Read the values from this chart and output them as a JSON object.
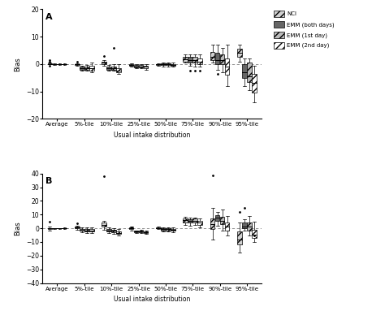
{
  "categories": [
    "Average",
    "5%-tile",
    "10%-tile",
    "25%-tile",
    "50%-tile",
    "75%-tile",
    "90%-tile",
    "95%-tile"
  ],
  "panel_A": {
    "NCI": {
      "whislo": [
        0.0,
        -0.5,
        -0.5,
        -0.8,
        -0.5,
        0.5,
        0.5,
        1.0
      ],
      "q1": [
        0.0,
        -0.3,
        0.0,
        -0.5,
        -0.2,
        1.0,
        1.5,
        2.5
      ],
      "med": [
        0.0,
        -0.1,
        0.5,
        -0.2,
        0.0,
        1.8,
        2.5,
        4.0
      ],
      "q3": [
        0.2,
        0.1,
        1.0,
        0.0,
        0.1,
        2.5,
        4.5,
        5.5
      ],
      "whishi": [
        0.5,
        0.3,
        1.5,
        0.2,
        0.3,
        3.5,
        7.0,
        7.0
      ]
    },
    "EMM_both": {
      "whislo": [
        -0.2,
        -2.5,
        -2.5,
        -1.5,
        -0.8,
        -0.5,
        -2.0,
        -8.0
      ],
      "q1": [
        0.0,
        -2.0,
        -2.0,
        -1.2,
        -0.3,
        0.5,
        0.0,
        -5.0
      ],
      "med": [
        0.0,
        -1.5,
        -1.5,
        -0.8,
        0.0,
        1.5,
        1.5,
        -3.0
      ],
      "q3": [
        0.1,
        -1.0,
        -1.0,
        -0.3,
        0.2,
        2.5,
        4.0,
        0.0
      ],
      "whishi": [
        0.2,
        -0.5,
        -0.3,
        0.0,
        0.5,
        3.5,
        7.0,
        2.0
      ]
    },
    "EMM_1st": {
      "whislo": [
        -0.2,
        -2.5,
        -2.5,
        -1.5,
        -0.8,
        -0.8,
        -3.0,
        -9.5
      ],
      "q1": [
        0.0,
        -2.0,
        -2.0,
        -1.2,
        -0.3,
        0.5,
        0.0,
        -6.5
      ],
      "med": [
        0.0,
        -1.5,
        -1.5,
        -0.8,
        0.0,
        1.5,
        1.5,
        -4.5
      ],
      "q3": [
        0.1,
        -1.0,
        -0.8,
        -0.3,
        0.2,
        2.5,
        3.5,
        0.5
      ],
      "whishi": [
        0.2,
        -0.3,
        -0.1,
        0.0,
        0.5,
        3.5,
        6.0,
        2.0
      ]
    },
    "EMM_2nd": {
      "whislo": [
        -0.3,
        -3.0,
        -3.5,
        -2.0,
        -1.0,
        -1.0,
        -8.0,
        -14.0
      ],
      "q1": [
        0.0,
        -2.5,
        -3.0,
        -1.5,
        -0.5,
        0.0,
        -4.0,
        -10.5
      ],
      "med": [
        0.0,
        -1.5,
        -2.5,
        -1.0,
        -0.2,
        0.8,
        -1.0,
        -7.0
      ],
      "q3": [
        0.1,
        -0.5,
        -1.5,
        -0.5,
        0.0,
        2.0,
        2.0,
        -3.5
      ],
      "whishi": [
        0.3,
        0.5,
        0.0,
        0.0,
        0.5,
        3.5,
        7.0,
        -0.5
      ]
    }
  },
  "fliers_A": [
    [
      0,
      0.8,
      "NCI"
    ],
    [
      0,
      1.5,
      "NCI"
    ],
    [
      0,
      -0.5,
      "NCI"
    ],
    [
      1,
      1.0,
      "NCI"
    ],
    [
      2,
      6.0,
      "EMM_1st"
    ],
    [
      2,
      3.0,
      "NCI"
    ],
    [
      5,
      -2.5,
      "EMM_both"
    ],
    [
      5,
      -2.5,
      "EMM_1st"
    ],
    [
      5,
      -2.5,
      "EMM_2nd"
    ],
    [
      6,
      -3.5,
      "EMM_both"
    ]
  ],
  "panel_B": {
    "NCI": {
      "whislo": [
        -1.5,
        -1.0,
        -1.0,
        -1.5,
        -0.5,
        2.5,
        -8.0,
        -18.0
      ],
      "q1": [
        -0.3,
        0.0,
        1.0,
        -0.5,
        0.0,
        4.5,
        -0.5,
        -12.0
      ],
      "med": [
        0.0,
        0.5,
        2.5,
        0.0,
        0.3,
        6.0,
        3.0,
        -8.0
      ],
      "q3": [
        0.3,
        1.0,
        4.0,
        0.5,
        0.8,
        7.0,
        7.0,
        -2.5
      ],
      "whishi": [
        1.5,
        2.0,
        5.5,
        1.5,
        1.5,
        8.5,
        15.0,
        4.0
      ]
    },
    "EMM_both": {
      "whislo": [
        -0.3,
        -3.0,
        -3.5,
        -3.5,
        -2.5,
        2.0,
        2.0,
        -2.0
      ],
      "q1": [
        0.0,
        -2.0,
        -2.5,
        -3.0,
        -1.5,
        4.0,
        5.5,
        0.0
      ],
      "med": [
        0.0,
        -1.5,
        -1.5,
        -2.5,
        -0.5,
        5.5,
        7.5,
        1.5
      ],
      "q3": [
        0.1,
        -0.5,
        -0.5,
        -2.0,
        0.0,
        6.5,
        9.5,
        4.0
      ],
      "whishi": [
        0.2,
        0.5,
        0.5,
        -1.5,
        0.8,
        7.5,
        12.0,
        6.5
      ]
    },
    "EMM_1st": {
      "whislo": [
        -0.3,
        -3.5,
        -4.0,
        -3.5,
        -2.5,
        2.5,
        -2.0,
        -5.0
      ],
      "q1": [
        0.0,
        -2.5,
        -3.0,
        -3.0,
        -1.5,
        4.5,
        3.0,
        -2.0
      ],
      "med": [
        0.0,
        -1.5,
        -2.0,
        -2.5,
        -0.5,
        5.5,
        5.5,
        1.0
      ],
      "q3": [
        0.1,
        -0.5,
        -1.0,
        -2.0,
        0.0,
        7.0,
        8.5,
        4.5
      ],
      "whishi": [
        0.2,
        0.5,
        0.0,
        -1.0,
        0.8,
        8.0,
        14.0,
        9.0
      ]
    },
    "EMM_2nd": {
      "whislo": [
        -0.5,
        -3.5,
        -5.0,
        -4.0,
        -3.0,
        0.5,
        -5.0,
        -10.0
      ],
      "q1": [
        -0.2,
        -2.5,
        -4.0,
        -3.5,
        -2.0,
        2.5,
        -1.5,
        -7.0
      ],
      "med": [
        0.0,
        -1.5,
        -3.5,
        -3.0,
        -1.0,
        4.0,
        1.5,
        -4.5
      ],
      "q3": [
        0.2,
        -0.5,
        -2.5,
        -2.5,
        -0.5,
        5.5,
        4.5,
        -1.0
      ],
      "whishi": [
        0.8,
        0.5,
        -0.5,
        -1.5,
        0.5,
        7.0,
        9.0,
        5.0
      ]
    }
  },
  "fliers_B": [
    [
      0,
      5.0,
      "NCI"
    ],
    [
      1,
      3.5,
      "NCI"
    ],
    [
      2,
      38.0,
      "NCI"
    ],
    [
      3,
      0.5,
      "NCI"
    ],
    [
      6,
      38.5,
      "NCI"
    ],
    [
      7,
      15.0,
      "EMM_both"
    ],
    [
      7,
      -5.0,
      "EMM_2nd"
    ],
    [
      7,
      12.0,
      "NCI"
    ]
  ],
  "methods": [
    "NCI",
    "EMM_both",
    "EMM_1st",
    "EMM_2nd"
  ],
  "colors_map": {
    "NCI": "#d0d0d0",
    "EMM_both": "#666666",
    "EMM_1st": "#bbbbbb",
    "EMM_2nd": "#ffffff"
  },
  "hatch_map": {
    "NCI": "////",
    "EMM_both": "",
    "EMM_1st": "////",
    "EMM_2nd": "////"
  },
  "legend_labels": [
    "NCI",
    "EMM (both days)",
    "EMM (1st day)",
    "EMM (2nd day)"
  ],
  "ylabel": "Bias",
  "xlabel": "Usual intake distribution",
  "ylim_A": [
    -20,
    20
  ],
  "ylim_B": [
    -40,
    40
  ],
  "yticks_A": [
    -20,
    -10,
    0,
    10,
    20
  ],
  "yticks_B": [
    -40,
    -30,
    -20,
    -10,
    0,
    10,
    20,
    30,
    40
  ],
  "box_width": 0.17,
  "offsets": [
    -0.27,
    -0.09,
    0.09,
    0.27
  ]
}
